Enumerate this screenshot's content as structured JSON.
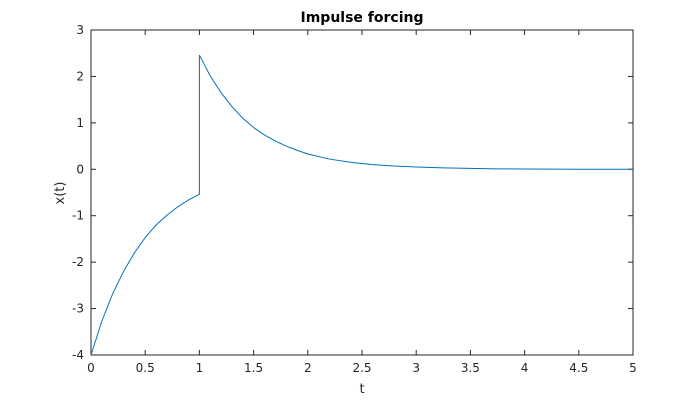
{
  "chart_data": {
    "type": "line",
    "title": "Impulse forcing",
    "xlabel": "t",
    "ylabel": "x(t)",
    "xlim": [
      0,
      5
    ],
    "ylim": [
      -4,
      3
    ],
    "x_ticks": [
      0,
      0.5,
      1,
      1.5,
      2,
      2.5,
      3,
      3.5,
      4,
      4.5,
      5
    ],
    "y_ticks": [
      -4,
      -3,
      -2,
      -1,
      0,
      1,
      2,
      3
    ],
    "x_tick_labels": [
      "0",
      "0.5",
      "1",
      "1.5",
      "2",
      "2.5",
      "3",
      "3.5",
      "4",
      "4.5",
      "5"
    ],
    "y_tick_labels": [
      "-4",
      "-3",
      "-2",
      "-1",
      "0",
      "1",
      "2",
      "3"
    ],
    "grid": false,
    "legend": "none",
    "colors": {
      "series": "#0072bd",
      "axes": "#262626"
    },
    "series": [
      {
        "x": [
          0,
          0.1,
          0.2,
          0.3,
          0.4,
          0.5,
          0.6,
          0.7,
          0.8,
          0.9,
          1.0,
          1.0,
          1.1,
          1.2,
          1.3,
          1.4,
          1.5,
          1.6,
          1.7,
          1.8,
          1.9,
          2.0,
          2.2,
          2.4,
          2.6,
          2.8,
          3.0,
          3.25,
          3.5,
          3.75,
          4.0,
          4.25,
          4.5,
          4.75,
          5.0
        ],
        "y": [
          -4.0,
          -3.27,
          -2.68,
          -2.2,
          -1.8,
          -1.47,
          -1.2,
          -0.99,
          -0.81,
          -0.66,
          -0.54,
          2.46,
          2.01,
          1.65,
          1.35,
          1.1,
          0.9,
          0.74,
          0.61,
          0.5,
          0.41,
          0.33,
          0.22,
          0.15,
          0.1,
          0.07,
          0.05,
          0.03,
          0.02,
          0.01,
          0.007,
          0.004,
          0.002,
          0.001,
          0.0
        ]
      }
    ]
  }
}
